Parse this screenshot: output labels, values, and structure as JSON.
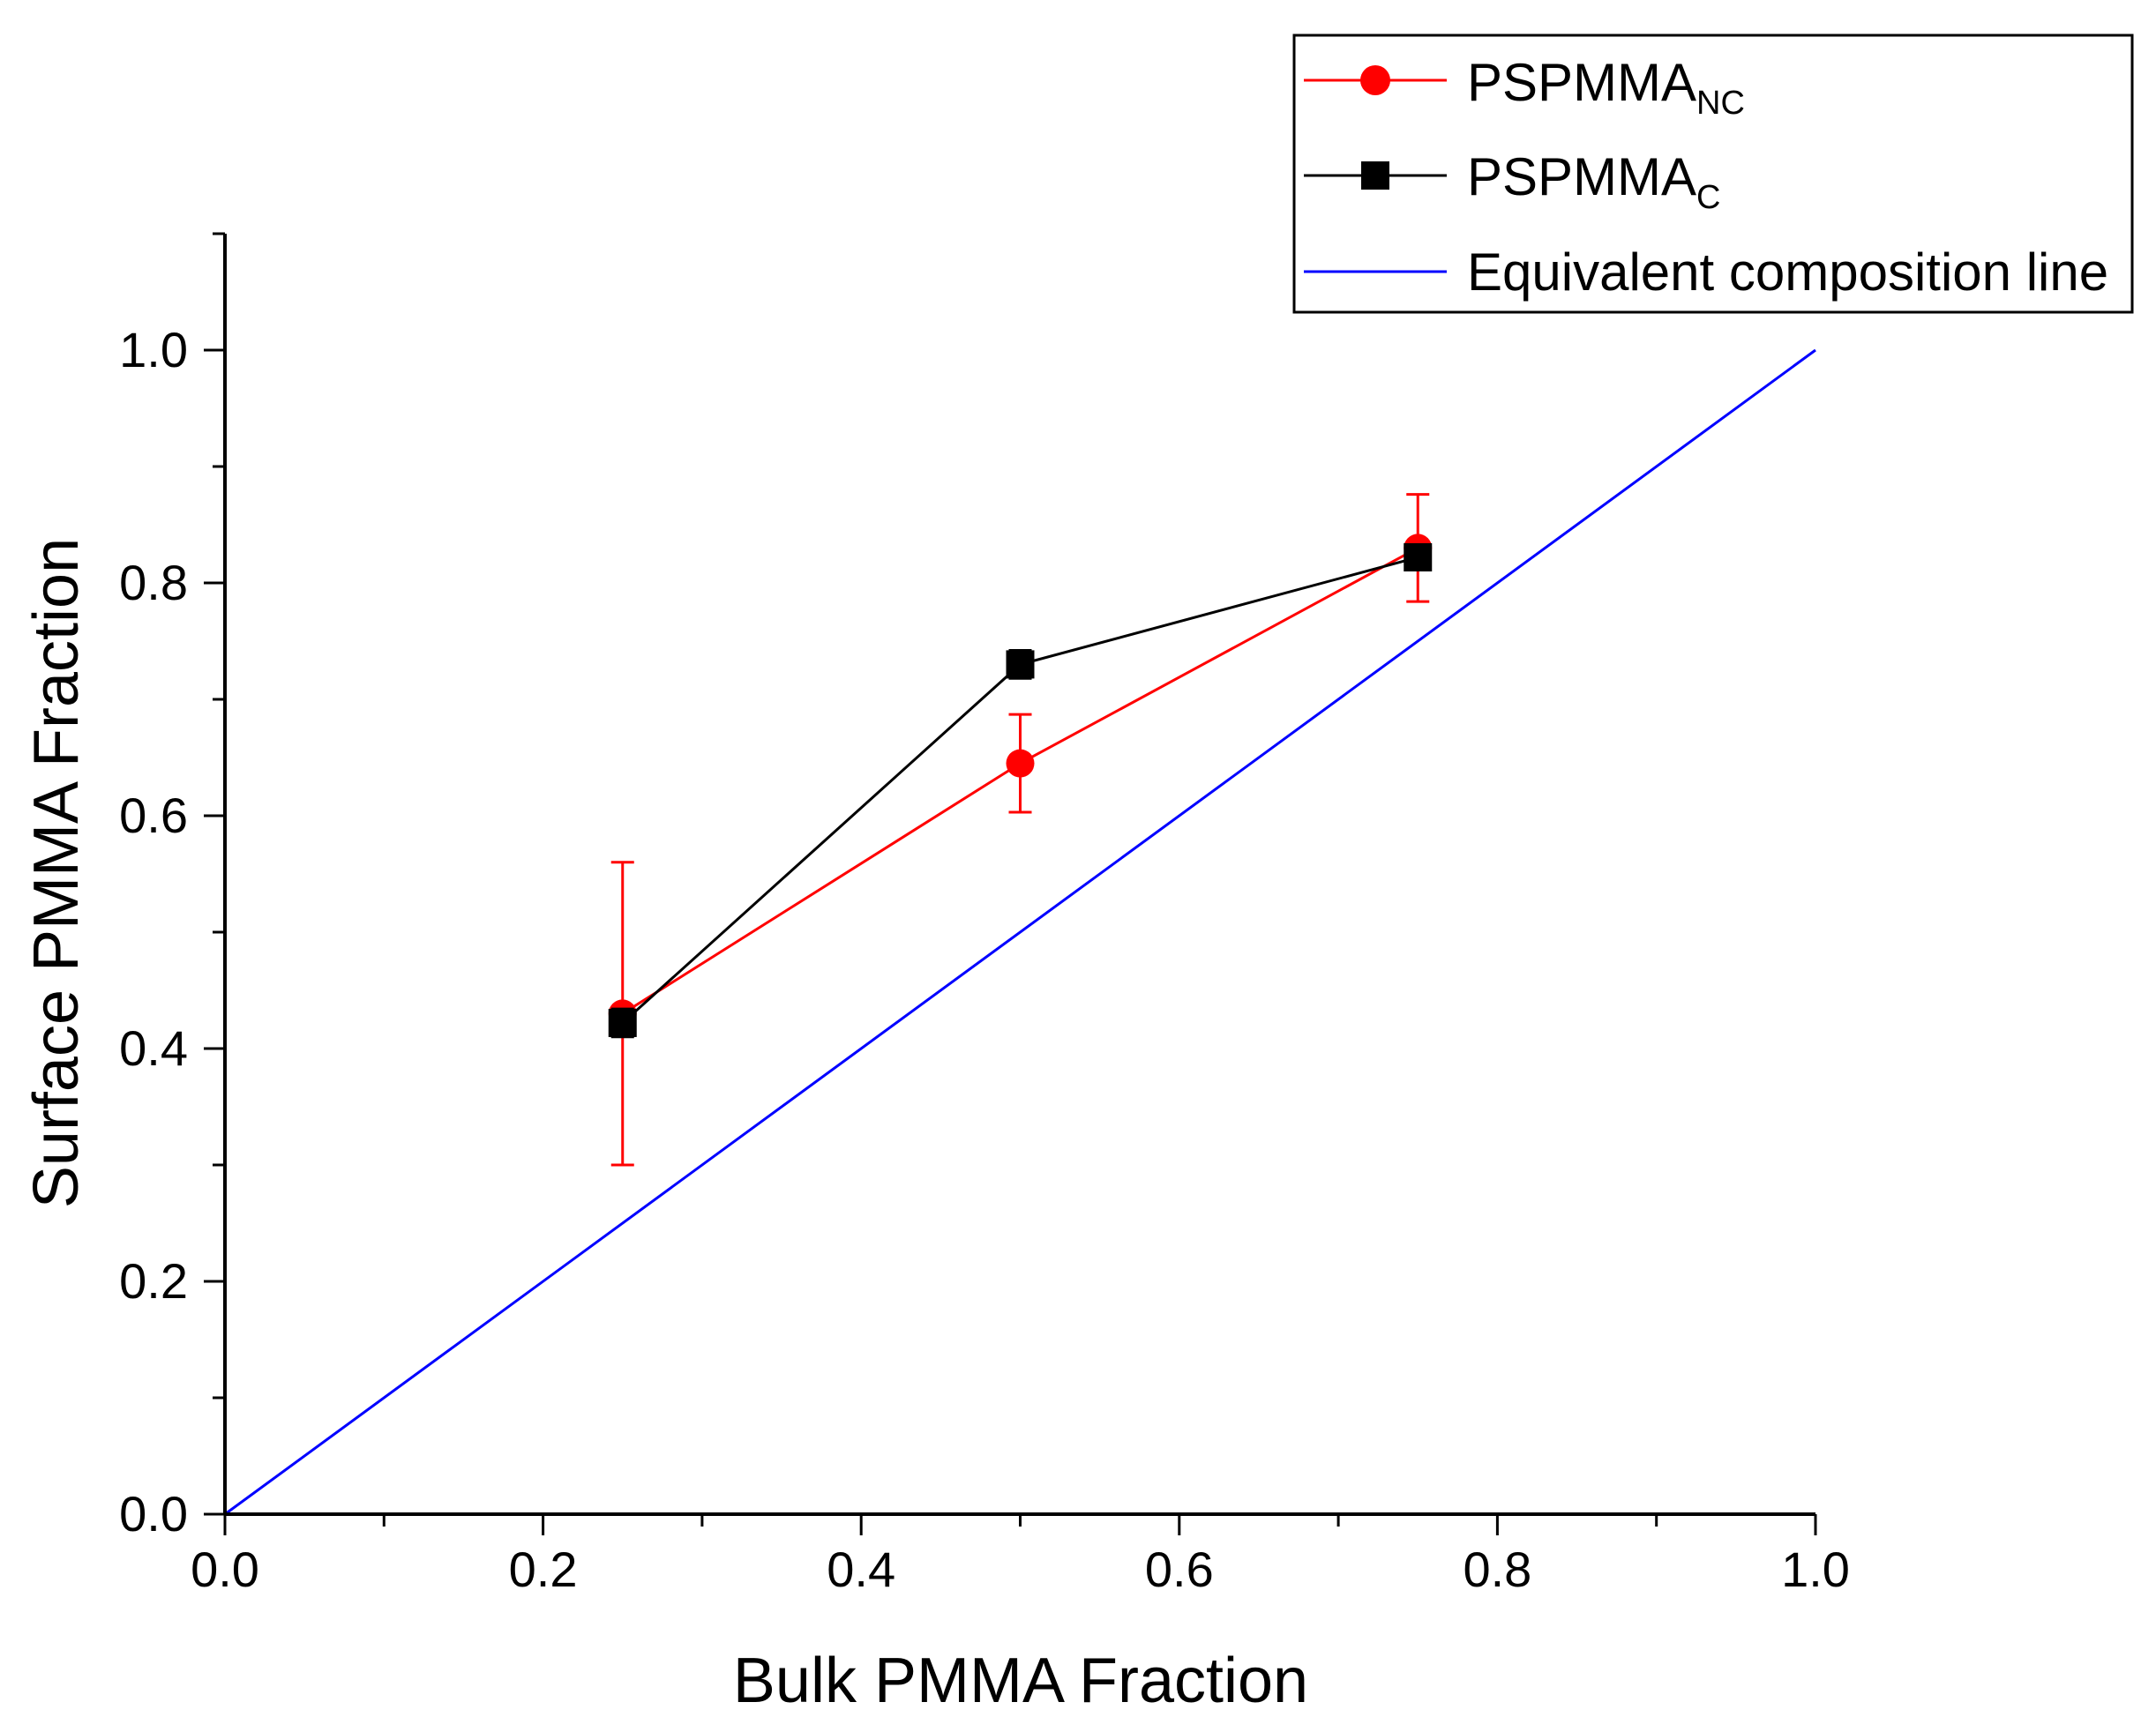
{
  "chart_data": {
    "type": "line",
    "title": "",
    "xlabel": "Bulk PMMA Fraction",
    "ylabel": "Surface PMMA Fraction",
    "xlim": [
      0.0,
      1.0
    ],
    "ylim": [
      0.0,
      1.1
    ],
    "xticks": [
      "0.0",
      "0.2",
      "0.4",
      "0.6",
      "0.8",
      "1.0"
    ],
    "yticks": [
      "0.0",
      "0.2",
      "0.4",
      "0.6",
      "0.8",
      "1.0"
    ],
    "grid": false,
    "legend_position": "top-right",
    "series": [
      {
        "name": "PSPMMA",
        "subscript": "NC",
        "color": "#ff0000",
        "marker": "circle",
        "x": [
          0.25,
          0.5,
          0.75
        ],
        "y": [
          0.43,
          0.645,
          0.83
        ],
        "error": [
          0.13,
          0.042,
          0.046
        ]
      },
      {
        "name": "PSPMMA",
        "subscript": "C",
        "color": "#000000",
        "marker": "square",
        "x": [
          0.25,
          0.5,
          0.75
        ],
        "y": [
          0.422,
          0.73,
          0.822
        ],
        "error": [
          0.012,
          0.012,
          0.01
        ]
      },
      {
        "name": "Equivalent composition line",
        "subscript": "",
        "color": "#0000ff",
        "marker": "none",
        "x": [
          0.0,
          1.0
        ],
        "y": [
          0.0,
          1.0
        ],
        "error": []
      }
    ]
  }
}
